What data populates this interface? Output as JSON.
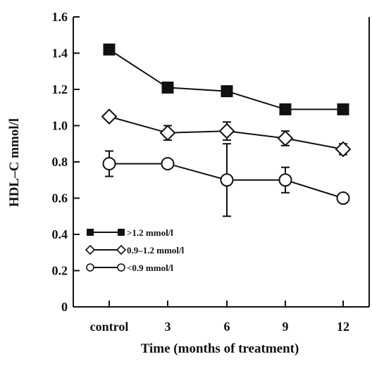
{
  "chart_data": {
    "type": "line",
    "title": "",
    "xlabel": "Time (months of treatment)",
    "ylabel": "HDL–C mmol/l",
    "categories": [
      "control",
      "3",
      "6",
      "9",
      "12"
    ],
    "ylim": [
      0,
      1.6
    ],
    "yticks": [
      "0",
      "0.2",
      "0.4",
      "0.6",
      "0.8",
      "1.0",
      "1.2",
      "1.4",
      "1.6"
    ],
    "grid": false,
    "legend_placement": "bottom-left",
    "series": [
      {
        "name": ">1.2 mmol/l",
        "marker": "filled-square",
        "values": [
          1.42,
          1.21,
          1.19,
          1.09,
          1.09
        ],
        "error": [
          null,
          null,
          null,
          null,
          null
        ]
      },
      {
        "name": "0.9–1.2 mmol/l",
        "marker": "open-diamond",
        "values": [
          1.05,
          0.96,
          0.97,
          0.93,
          0.87
        ],
        "error": [
          null,
          0.04,
          0.05,
          0.04,
          0.03
        ]
      },
      {
        "name": "<0.9 mmol/l",
        "marker": "open-circle",
        "values": [
          0.79,
          0.79,
          0.7,
          0.7,
          0.6
        ],
        "error": [
          0.07,
          null,
          0.2,
          0.07,
          null
        ]
      }
    ]
  }
}
